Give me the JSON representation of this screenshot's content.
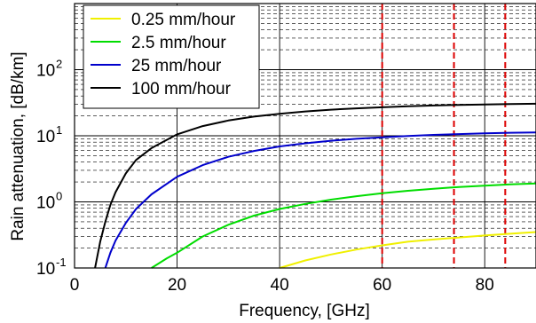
{
  "chart_data": {
    "type": "line",
    "xlabel": "Frequency, [GHz]",
    "ylabel": "Rain attenuation, [dB/km]",
    "xlim": [
      0,
      90
    ],
    "ylim": [
      0.1,
      1000
    ],
    "yscale": "log",
    "grid": true,
    "minor_grid_style": "dashed",
    "legend_position": "top-left",
    "x_ticks": [
      {
        "value": 0,
        "label": "0"
      },
      {
        "value": 20,
        "label": "20"
      },
      {
        "value": 40,
        "label": "40"
      },
      {
        "value": 60,
        "label": "60"
      },
      {
        "value": 80,
        "label": "80"
      }
    ],
    "y_ticks": [
      {
        "value": 0.1,
        "base": "10",
        "exp": "-1"
      },
      {
        "value": 1,
        "base": "10",
        "exp": "0"
      },
      {
        "value": 10,
        "base": "10",
        "exp": "1"
      },
      {
        "value": 100,
        "base": "10",
        "exp": "2"
      }
    ],
    "reference_lines": [
      {
        "x": 60,
        "color": "#dd0000",
        "style": "dashed"
      },
      {
        "x": 74,
        "color": "#dd0000",
        "style": "dashed"
      },
      {
        "x": 84,
        "color": "#dd0000",
        "style": "dashed"
      }
    ],
    "series": [
      {
        "name": "0.25 mm/hour",
        "color": "#f0f000",
        "x": [
          40,
          45,
          50,
          55,
          60,
          65,
          70,
          75,
          80,
          85,
          90
        ],
        "y": [
          0.1,
          0.13,
          0.16,
          0.19,
          0.22,
          0.25,
          0.27,
          0.29,
          0.31,
          0.33,
          0.35
        ]
      },
      {
        "name": "2.5 mm/hour",
        "color": "#00dd00",
        "x": [
          15,
          18,
          20,
          25,
          30,
          35,
          40,
          45,
          50,
          55,
          60,
          65,
          70,
          75,
          80,
          85,
          90
        ],
        "y": [
          0.1,
          0.14,
          0.17,
          0.3,
          0.45,
          0.62,
          0.78,
          0.93,
          1.08,
          1.22,
          1.35,
          1.47,
          1.58,
          1.68,
          1.76,
          1.84,
          1.9
        ]
      },
      {
        "name": "25 mm/hour",
        "color": "#0000cc",
        "x": [
          6,
          7,
          8,
          10,
          12,
          15,
          20,
          25,
          30,
          35,
          40,
          45,
          50,
          55,
          60,
          65,
          70,
          75,
          80,
          85,
          90
        ],
        "y": [
          0.1,
          0.17,
          0.26,
          0.48,
          0.78,
          1.3,
          2.4,
          3.6,
          4.8,
          5.9,
          6.9,
          7.7,
          8.4,
          9.0,
          9.5,
          9.9,
          10.3,
          10.6,
          10.9,
          11.1,
          11.2
        ]
      },
      {
        "name": "100 mm/hour",
        "color": "#000000",
        "x": [
          4,
          5,
          6,
          7,
          8,
          10,
          12,
          15,
          20,
          25,
          30,
          35,
          40,
          45,
          50,
          55,
          60,
          65,
          70,
          75,
          80,
          85,
          90
        ],
        "y": [
          0.1,
          0.25,
          0.5,
          0.9,
          1.4,
          2.7,
          4.3,
          6.5,
          10.5,
          14.0,
          17.0,
          19.5,
          21.5,
          23.3,
          24.8,
          26.0,
          27.0,
          27.9,
          28.7,
          29.3,
          29.8,
          30.2,
          30.5
        ]
      }
    ]
  }
}
